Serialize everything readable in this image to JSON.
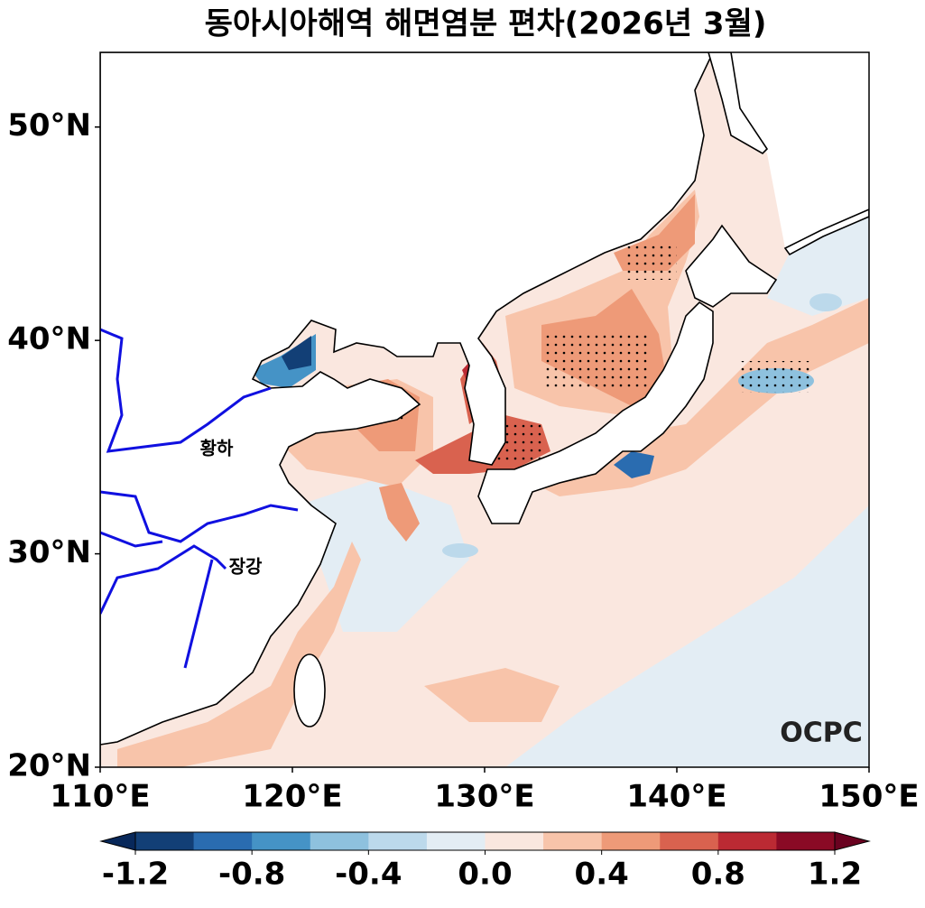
{
  "map": {
    "title": "동아시아해역 해면염분 편차(2026년 3월)",
    "xlim": [
      110,
      150
    ],
    "ylim": [
      20,
      53.5
    ],
    "xticks": [
      {
        "value": 110,
        "label": "110°E"
      },
      {
        "value": 120,
        "label": "120°E"
      },
      {
        "value": 130,
        "label": "130°E"
      },
      {
        "value": 140,
        "label": "140°E"
      },
      {
        "value": 150,
        "label": "150°E"
      }
    ],
    "yticks": [
      {
        "value": 20,
        "label": "20°N"
      },
      {
        "value": 30,
        "label": "30°N"
      },
      {
        "value": 40,
        "label": "40°N"
      },
      {
        "value": 50,
        "label": "50°N"
      }
    ],
    "labels": [
      "황하",
      "장강"
    ],
    "logo": "OCPC",
    "colorbar": {
      "clim": [
        -1.2,
        1.2
      ],
      "colors": [
        "#08285a",
        "#123f76",
        "#2a6cb0",
        "#4593c6",
        "#8ec1de",
        "#bcd9eb",
        "#e3edf4",
        "#fae7df",
        "#f8c4aa",
        "#ee9a78",
        "#d9624f",
        "#bb2a33",
        "#8a0a25",
        "#6a0220"
      ],
      "ticks": [
        -1.2,
        -0.8,
        -0.4,
        {
          "value": 0,
          "label": "0.0"
        },
        0.4,
        0.8,
        1.2
      ]
    }
  }
}
